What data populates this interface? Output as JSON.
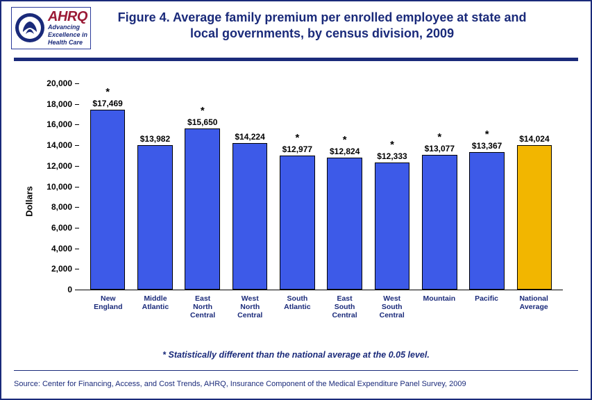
{
  "logo": {
    "ahrq_wordmark": "AHRQ",
    "tagline_line1": "Advancing",
    "tagline_line2": "Excellence in",
    "tagline_line3": "Health Care"
  },
  "title": "Figure 4. Average family premium per enrolled employee at state and local governments, by census division, 2009",
  "chart": {
    "type": "bar",
    "ylabel": "Dollars",
    "ylim": [
      0,
      20000
    ],
    "ytick_step": 2000,
    "yticks": [
      {
        "v": 0,
        "label": "0"
      },
      {
        "v": 2000,
        "label": "2,000"
      },
      {
        "v": 4000,
        "label": "4,000"
      },
      {
        "v": 6000,
        "label": "6,000"
      },
      {
        "v": 8000,
        "label": "8,000"
      },
      {
        "v": 10000,
        "label": "10,000"
      },
      {
        "v": 12000,
        "label": "12,000"
      },
      {
        "v": 14000,
        "label": "14,000"
      },
      {
        "v": 16000,
        "label": "16,000"
      },
      {
        "v": 18000,
        "label": "18,000"
      },
      {
        "v": 20000,
        "label": "20,000"
      }
    ],
    "bar_border_color": "#000000",
    "default_bar_color": "#3d5ae8",
    "highlight_bar_color": "#f2b600",
    "background_color": "#ffffff",
    "title_color": "#1a2a7a",
    "categories": [
      {
        "name": "New England",
        "value": 17469,
        "display": "$17,469",
        "sig": true,
        "color": "#3d5ae8"
      },
      {
        "name": "Middle Atlantic",
        "value": 13982,
        "display": "$13,982",
        "sig": false,
        "color": "#3d5ae8"
      },
      {
        "name": "East North Central",
        "value": 15650,
        "display": "$15,650",
        "sig": true,
        "color": "#3d5ae8"
      },
      {
        "name": "West North Central",
        "value": 14224,
        "display": "$14,224",
        "sig": false,
        "color": "#3d5ae8"
      },
      {
        "name": "South Atlantic",
        "value": 12977,
        "display": "$12,977",
        "sig": true,
        "color": "#3d5ae8"
      },
      {
        "name": "East South Central",
        "value": 12824,
        "display": "$12,824",
        "sig": true,
        "color": "#3d5ae8"
      },
      {
        "name": "West South Central",
        "value": 12333,
        "display": "$12,333",
        "sig": true,
        "color": "#3d5ae8"
      },
      {
        "name": "Mountain",
        "value": 13077,
        "display": "$13,077",
        "sig": true,
        "color": "#3d5ae8"
      },
      {
        "name": "Pacific",
        "value": 13367,
        "display": "$13,367",
        "sig": true,
        "color": "#3d5ae8"
      },
      {
        "name": "National Average",
        "value": 14024,
        "display": "$14,024",
        "sig": false,
        "color": "#f2b600"
      }
    ],
    "label_fontsize": 12,
    "xlabel_fontsize": 10.5,
    "title_fontsize": 18
  },
  "footnote": "* Statistically different than the national average at the 0.05 level.",
  "source": "Source: Center for Financing, Access, and Cost Trends, AHRQ, Insurance Component of the Medical Expenditure Panel Survey, 2009"
}
